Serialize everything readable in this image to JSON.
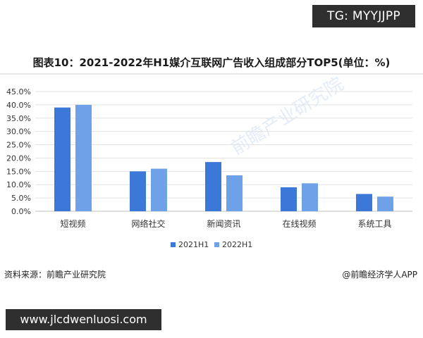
{
  "tg_label": "TG: MYYJJPP",
  "source_text": "资料来源：前瞻产业研究院",
  "brand_text": "@前瞻经济学人APP",
  "url_text": "www.jlcdwenluosi.com",
  "watermark_text": "前瞻产业研究院",
  "chart_data": {
    "type": "bar",
    "title": "图表10：2021-2022年H1媒介互联网广告收入组成部分TOP5(单位：%)",
    "categories": [
      "短视频",
      "网络社交",
      "新闻资讯",
      "在线视频",
      "系统工具"
    ],
    "series": [
      {
        "name": "2021H1",
        "values": [
          39.0,
          15.0,
          18.5,
          9.0,
          6.5
        ],
        "color": "#3c78d8"
      },
      {
        "name": "2022H1",
        "values": [
          40.0,
          16.0,
          13.5,
          10.5,
          5.5
        ],
        "color": "#6fa1e9"
      }
    ],
    "ylim": [
      0,
      45
    ],
    "yticks": [
      0,
      5,
      10,
      15,
      20,
      25,
      30,
      35,
      40,
      45
    ],
    "ytick_labels": [
      "0.0%",
      "5.0%",
      "10.0%",
      "15.0%",
      "20.0%",
      "25.0%",
      "30.0%",
      "35.0%",
      "40.0%",
      "45.0%"
    ],
    "grid": true,
    "legend": "bottom"
  }
}
